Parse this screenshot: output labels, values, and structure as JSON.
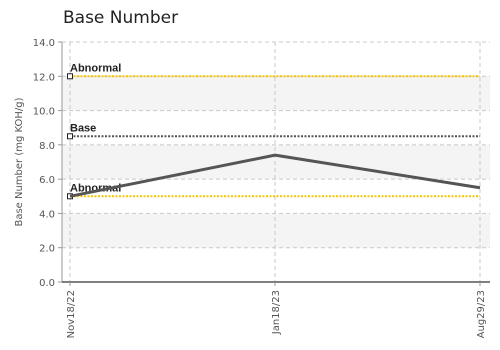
{
  "chart_data": {
    "type": "line",
    "title": "Base Number",
    "ylabel": "Base Number (mg KOH/g)",
    "xlabel": "",
    "ylim": [
      0,
      14
    ],
    "yticks": [
      "0.0",
      "2.0",
      "4.0",
      "6.0",
      "8.0",
      "10.0",
      "12.0",
      "14.0"
    ],
    "categories": [
      "Nov18/22",
      "Jan18/23",
      "Aug29/23"
    ],
    "series": [
      {
        "values": [
          5.0,
          7.4,
          5.5
        ],
        "color": "#555555"
      }
    ],
    "thresholds": [
      {
        "label": "Abnormal",
        "value": 12.0,
        "color": "#f5c400"
      },
      {
        "label": "Base",
        "value": 8.5,
        "color": "#555555"
      },
      {
        "label": "Abnormal",
        "value": 5.0,
        "color": "#f5c400"
      }
    ],
    "grid": true,
    "bands": true
  }
}
